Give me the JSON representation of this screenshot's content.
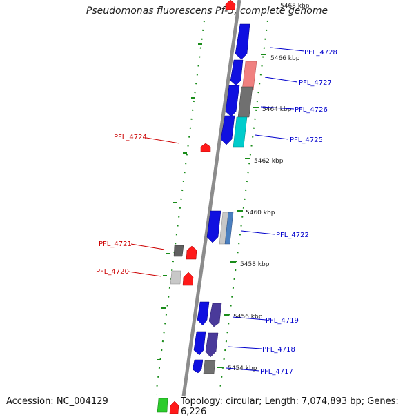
{
  "title": "Pseudomonas fluorescens Pf-5, complete genome",
  "accession": "Accession: NC_004129",
  "topology": "Topology: circular; Length: 7,074,893 bp; Genes: 6,226",
  "colors": {
    "backbone": "#8c8c8c",
    "tick_dots": "#1a8c1a",
    "forward_label": "#0000cc",
    "reverse_label": "#cc0000"
  },
  "ruler": [
    "5468 kbp",
    "5466 kbp",
    "5464 kbp",
    "5462 kbp",
    "5460 kbp",
    "5458 kbp",
    "5456 kbp",
    "5454 kbp"
  ],
  "forward_genes": [
    {
      "label": "PFL_4728"
    },
    {
      "label": "PFL_4727"
    },
    {
      "label": "PFL_4726"
    },
    {
      "label": "PFL_4725"
    },
    {
      "label": "PFL_4722"
    },
    {
      "label": "PFL_4719"
    },
    {
      "label": "PFL_4718"
    },
    {
      "label": "PFL_4717"
    }
  ],
  "reverse_genes": [
    {
      "label": "PFL_4724"
    },
    {
      "label": "PFL_4721"
    },
    {
      "label": "PFL_4720"
    }
  ]
}
